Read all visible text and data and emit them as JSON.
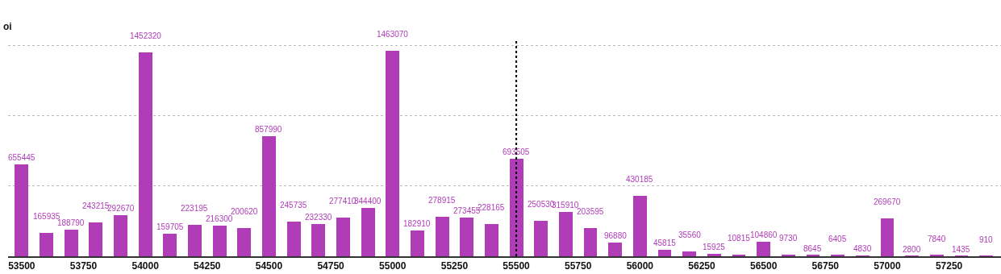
{
  "chart_data": {
    "type": "bar",
    "ylabel": "oi",
    "x": [
      53500,
      53600,
      53700,
      53800,
      53900,
      54000,
      54100,
      54200,
      54300,
      54400,
      54500,
      54600,
      54700,
      54800,
      54900,
      55000,
      55100,
      55200,
      55300,
      55400,
      55500,
      55600,
      55700,
      55800,
      55900,
      56000,
      56100,
      56200,
      56300,
      56400,
      56500,
      56600,
      56700,
      56800,
      56900,
      57000,
      57100,
      57200,
      57300,
      57400
    ],
    "series": [
      {
        "color": "#b03cb8",
        "values": [
          655445,
          165935,
          188790,
          243215,
          292670,
          1452320,
          159705,
          223195,
          216300,
          200620,
          857990,
          245735,
          232330,
          277410,
          344400,
          1463070,
          182910,
          278915,
          273455,
          228165,
          693505,
          250530,
          315910,
          203595,
          96880,
          430185,
          45815,
          35560,
          15925,
          10815,
          104860,
          9730,
          8645,
          6405,
          4830,
          269670,
          2800,
          7840,
          1435,
          910
        ]
      }
    ],
    "data_labels": true,
    "xlim": [
      53445,
      57460
    ],
    "xticks": [
      53500,
      53750,
      54000,
      54250,
      54500,
      54750,
      55000,
      55250,
      55500,
      55750,
      56000,
      56250,
      56500,
      56750,
      57000,
      57250
    ],
    "ylim": [
      0,
      1540000
    ],
    "yticks": [
      {
        "value": 0,
        "label": null
      },
      {
        "value": 500000,
        "label": null
      },
      {
        "value": 1000000,
        "label": null
      },
      {
        "value": 1500000,
        "label": null
      }
    ],
    "tick_labels": "x",
    "grid": "y",
    "ref_lines": [
      {
        "axis": "x",
        "value": 55500,
        "line_style": "dotted",
        "color": "#000000"
      }
    ]
  }
}
